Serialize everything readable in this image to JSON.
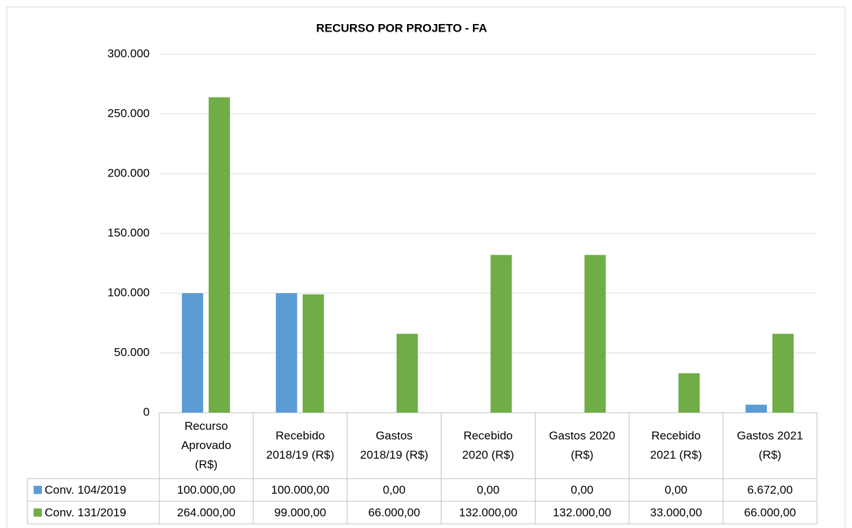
{
  "chart_data": {
    "type": "bar",
    "title": "RECURSO POR PROJETO - FA",
    "categories": [
      "Recurso Aprovado (R$)",
      "Recebido 2018/19 (R$)",
      "Gastos 2018/19 (R$)",
      "Recebido 2020 (R$)",
      "Gastos 2020 (R$)",
      "Recebido 2021 (R$)",
      "Gastos 2021 (R$)"
    ],
    "series": [
      {
        "name": "Conv. 104/2019",
        "color": "#5b9bd5",
        "values": [
          100000,
          100000,
          0,
          0,
          0,
          0,
          6672
        ],
        "value_labels": [
          "100.000,00",
          "100.000,00",
          "0,00",
          "0,00",
          "0,00",
          "0,00",
          "6.672,00"
        ]
      },
      {
        "name": "Conv. 131/2019",
        "color": "#70ad47",
        "values": [
          264000,
          99000,
          66000,
          132000,
          132000,
          33000,
          66000
        ],
        "value_labels": [
          "264.000,00",
          "99.000,00",
          "66.000,00",
          "132.000,00",
          "132.000,00",
          "33.000,00",
          "66.000,00"
        ]
      }
    ],
    "ylim": [
      0,
      300000
    ],
    "yticks": [
      0,
      {
        "value": 50000,
        "label": "50.000"
      },
      {
        "value": 100000,
        "label": "100.000"
      },
      {
        "value": 150000,
        "label": "150.000"
      },
      {
        "value": 200000,
        "label": "200.000"
      },
      {
        "value": 250000,
        "label": "250.000"
      },
      {
        "value": 300000,
        "label": "300.000"
      }
    ],
    "grid": true
  }
}
